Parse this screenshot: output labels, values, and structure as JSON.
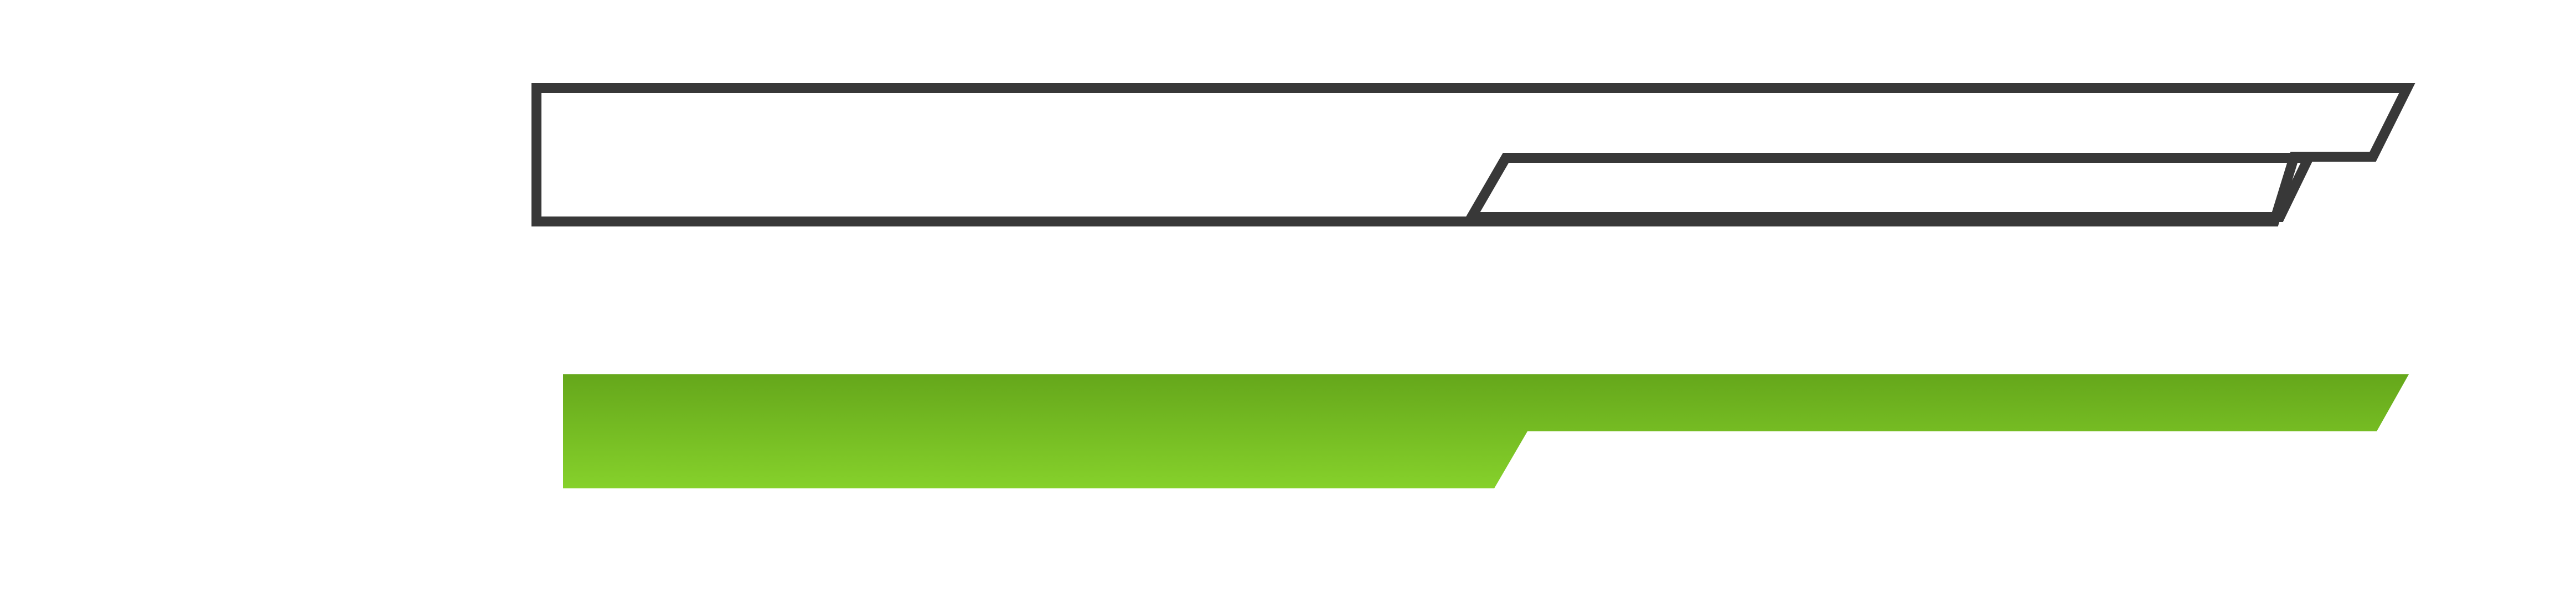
{
  "graphic": {
    "outline_shape": {
      "color": "#383838"
    },
    "filled_shape": {
      "gradient_top": "#65a71b",
      "gradient_bottom": "#86d12b"
    }
  }
}
